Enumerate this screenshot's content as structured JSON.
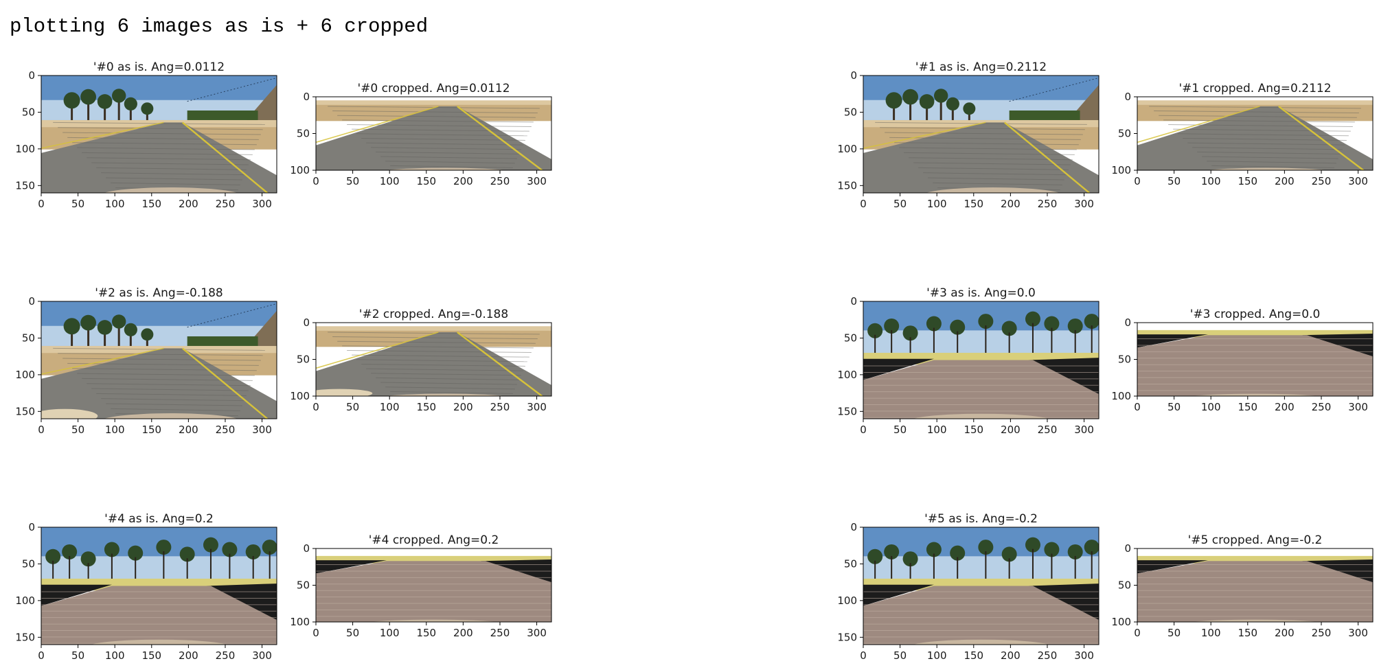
{
  "header": {
    "text": "plotting 6 images as is + 6 cropped"
  },
  "colors": {
    "sky": "#5f8fc4",
    "sky_light": "#b8d0e6",
    "sand": "#c9ad7e",
    "sand_light": "#ddc8a0",
    "road_grey": "#7e7d78",
    "road_dark": "#5f5e5a",
    "cobble": "#9e8a80",
    "cobble_light": "#c4b2a6",
    "tree": "#2f4a28",
    "bush": "#3d5a2a",
    "lane_yellow": "#d6c23a",
    "wall": "#1c1c1c",
    "yellow_grass": "#d9cf7a",
    "hood": "#c8b7a0"
  },
  "panels": [
    {
      "title": "'#0 as is. Ang=0.0112",
      "kind": "as_is",
      "scene": "desert",
      "xticks": [
        0,
        50,
        100,
        150,
        200,
        250,
        300
      ],
      "yticks": [
        0,
        50,
        100,
        150
      ],
      "xlim": [
        0,
        320
      ],
      "ylim": [
        160,
        0
      ]
    },
    {
      "title": "'#0 cropped. Ang=0.0112",
      "kind": "cropped",
      "scene": "desert",
      "xticks": [
        0,
        50,
        100,
        150,
        200,
        250,
        300
      ],
      "yticks": [
        0,
        50,
        100
      ],
      "xlim": [
        0,
        320
      ],
      "ylim": [
        100,
        0
      ]
    },
    {
      "title": "'#1 as is. Ang=0.2112",
      "kind": "as_is",
      "scene": "desert",
      "xticks": [
        0,
        50,
        100,
        150,
        200,
        250,
        300
      ],
      "yticks": [
        0,
        50,
        100,
        150
      ],
      "xlim": [
        0,
        320
      ],
      "ylim": [
        160,
        0
      ]
    },
    {
      "title": "'#1 cropped. Ang=0.2112",
      "kind": "cropped",
      "scene": "desert",
      "xticks": [
        0,
        50,
        100,
        150,
        200,
        250,
        300
      ],
      "yticks": [
        0,
        50,
        100
      ],
      "xlim": [
        0,
        320
      ],
      "ylim": [
        100,
        0
      ]
    },
    {
      "title": "'#2 as is. Ang=-0.188",
      "kind": "as_is",
      "scene": "desert",
      "xticks": [
        0,
        50,
        100,
        150,
        200,
        250,
        300
      ],
      "yticks": [
        0,
        50,
        100,
        150
      ],
      "xlim": [
        0,
        320
      ],
      "ylim": [
        160,
        0
      ]
    },
    {
      "title": "'#2 cropped. Ang=-0.188",
      "kind": "cropped",
      "scene": "desert",
      "xticks": [
        0,
        50,
        100,
        150,
        200,
        250,
        300
      ],
      "yticks": [
        0,
        50,
        100
      ],
      "xlim": [
        0,
        320
      ],
      "ylim": [
        100,
        0
      ]
    },
    {
      "title": "'#3 as is. Ang=0.0",
      "kind": "as_is",
      "scene": "cobble",
      "xticks": [
        0,
        50,
        100,
        150,
        200,
        250,
        300
      ],
      "yticks": [
        0,
        50,
        100,
        150
      ],
      "xlim": [
        0,
        320
      ],
      "ylim": [
        160,
        0
      ]
    },
    {
      "title": "'#3 cropped. Ang=0.0",
      "kind": "cropped",
      "scene": "cobble",
      "xticks": [
        0,
        50,
        100,
        150,
        200,
        250,
        300
      ],
      "yticks": [
        0,
        50,
        100
      ],
      "xlim": [
        0,
        320
      ],
      "ylim": [
        100,
        0
      ]
    },
    {
      "title": "'#4 as is. Ang=0.2",
      "kind": "as_is",
      "scene": "cobble",
      "xticks": [
        0,
        50,
        100,
        150,
        200,
        250,
        300
      ],
      "yticks": [
        0,
        50,
        100,
        150
      ],
      "xlim": [
        0,
        320
      ],
      "ylim": [
        160,
        0
      ]
    },
    {
      "title": "'#4 cropped. Ang=0.2",
      "kind": "cropped",
      "scene": "cobble",
      "xticks": [
        0,
        50,
        100,
        150,
        200,
        250,
        300
      ],
      "yticks": [
        0,
        50,
        100
      ],
      "xlim": [
        0,
        320
      ],
      "ylim": [
        100,
        0
      ]
    },
    {
      "title": "'#5 as is. Ang=-0.2",
      "kind": "as_is",
      "scene": "cobble",
      "xticks": [
        0,
        50,
        100,
        150,
        200,
        250,
        300
      ],
      "yticks": [
        0,
        50,
        100,
        150
      ],
      "xlim": [
        0,
        320
      ],
      "ylim": [
        160,
        0
      ]
    },
    {
      "title": "'#5 cropped. Ang=-0.2",
      "kind": "cropped",
      "scene": "cobble",
      "xticks": [
        0,
        50,
        100,
        150,
        200,
        250,
        300
      ],
      "yticks": [
        0,
        50,
        100
      ],
      "xlim": [
        0,
        320
      ],
      "ylim": [
        100,
        0
      ]
    }
  ]
}
